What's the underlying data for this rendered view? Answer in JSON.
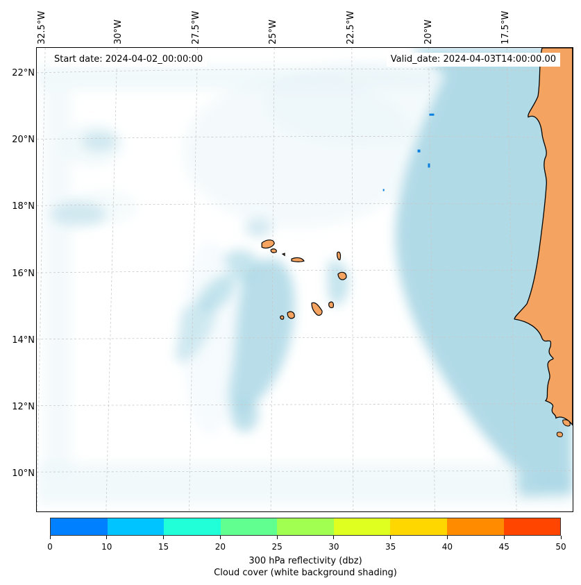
{
  "map": {
    "lon_labels": [
      "32.5°W",
      "30°W",
      "27.5°W",
      "25°W",
      "22.5°W",
      "20°W",
      "17.5°W"
    ],
    "lat_labels": [
      "22°N",
      "20°N",
      "18°N",
      "16°N",
      "14°N",
      "12°N",
      "10°N"
    ],
    "start_date": "Start date: 2024-04-02_00:00:00",
    "valid_date": "Valid_date: 2024-04-03T14:00:00.00",
    "colors": {
      "land": "#f4a460",
      "cloud": "#add8e6",
      "cloud_light": "#e6f4f8",
      "echo": "#0a7fe0"
    }
  },
  "colorbar": {
    "ticks": [
      "0",
      "10",
      "15",
      "20",
      "25",
      "30",
      "35",
      "40",
      "45",
      "50"
    ],
    "colors": [
      "#0080ff",
      "#00c4ff",
      "#20ffd8",
      "#60ff90",
      "#a0ff50",
      "#dfff20",
      "#ffd700",
      "#ff8c00",
      "#ff4500"
    ],
    "label_line1": "300 hPa reflectivity (dbz)",
    "label_line2": "Cloud cover (white background shading)"
  }
}
